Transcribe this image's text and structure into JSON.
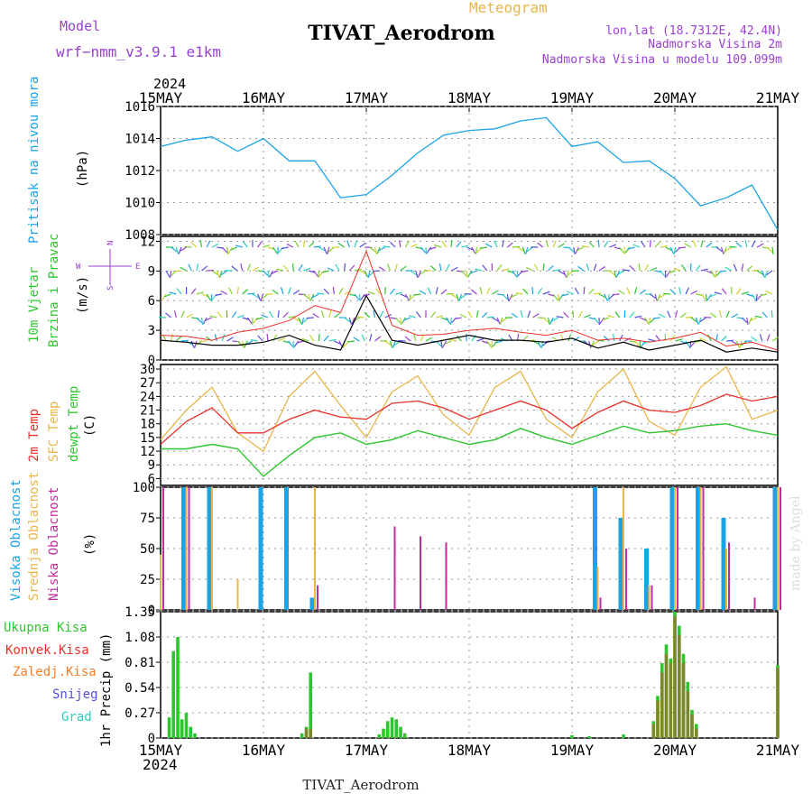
{
  "header": {
    "model_label": "Model",
    "model_name": "wrf−nmm_v3.9.1 e1km",
    "meteogram_label": "Meteogram",
    "station_title": "TIVAT_Aerodrom",
    "coords": "lon,lat (18.7312E, 42.4N)",
    "elevation": "Nadmorska Visina 2m",
    "model_elevation": "Nadmorska Visina u modelu 109.099m",
    "year_top": "2024",
    "year_bottom": "2024",
    "footer_title": "TIVAT_Aerodrom",
    "watermark": "made by Angel"
  },
  "time_labels": [
    "15MAY",
    "16MAY",
    "17MAY",
    "18MAY",
    "19MAY",
    "20MAY",
    "21MAY"
  ],
  "colors": {
    "pressure": "#1ba3e6",
    "wind_speed": "#000000",
    "gust": "#e8312a",
    "temp_2m": "#e8312a",
    "temp_sfc": "#e8b64a",
    "dewpoint": "#2ec52e",
    "cloud_high": "#1ba3e6",
    "cloud_mid": "#e8b64a",
    "cloud_low": "#c12c9c",
    "precip_total": "#2ec52e",
    "precip_conv": "#e8312a",
    "precip_frozen": "#f07f2a",
    "snow": "#5050e0",
    "hail": "#2ccfbf",
    "label_purple": "#9a3fd1"
  },
  "panels": {
    "pressure": {
      "ylabel": "Pritisak na nivou mora",
      "unit": "(hPa)",
      "ticks": [
        "1016",
        "1014",
        "1012",
        "1010",
        "1008"
      ]
    },
    "wind": {
      "ylabel_1": "10m Vjetar",
      "ylabel_2": "Brzina i Pravac",
      "unit": "(m/s)",
      "ticks": [
        "12",
        "9",
        "6",
        "3",
        "0"
      ],
      "compass": [
        "N",
        "W",
        "E",
        "S"
      ]
    },
    "temp": {
      "ylabel_1": "2m Temp",
      "ylabel_2": "SFC Temp",
      "ylabel_3": "dewpt Temp",
      "unit": "(C)",
      "ticks": [
        "30",
        "27",
        "24",
        "21",
        "18",
        "15",
        "12",
        "9",
        "6"
      ]
    },
    "cloud": {
      "ylabel_1": "Visoka Oblacnost",
      "ylabel_2": "Srednja Oblacnost",
      "ylabel_3": "Niska Oblacnost",
      "unit": "(%)",
      "ticks": [
        "100",
        "75",
        "50",
        "25",
        "0"
      ]
    },
    "precip": {
      "legend": [
        "Ukupna Kisa",
        "Konvek.Kisa",
        "Zaledj.Kisa",
        "Snijeg",
        "Grad"
      ],
      "ylabel": "1hr Precip (mm)",
      "ticks": [
        "1.35",
        "1.08",
        "0.81",
        "0.54",
        "0.27",
        "0"
      ]
    }
  },
  "chart_data": [
    {
      "type": "line",
      "title": "Pritisak na nivou mora",
      "ylabel": "(hPa)",
      "ylim": [
        1008,
        1016
      ],
      "x": [
        "15MAY",
        "15MAY 06",
        "15MAY 12",
        "15MAY 18",
        "16MAY",
        "16MAY 06",
        "16MAY 12",
        "16MAY 18",
        "17MAY",
        "17MAY 06",
        "17MAY 12",
        "17MAY 18",
        "18MAY",
        "18MAY 06",
        "18MAY 12",
        "18MAY 18",
        "19MAY",
        "19MAY 06",
        "19MAY 12",
        "19MAY 18",
        "20MAY",
        "20MAY 06",
        "20MAY 12",
        "20MAY 18",
        "21MAY"
      ],
      "series": [
        {
          "name": "Pritisak na nivou mora",
          "values": [
            1013.5,
            1013.9,
            1014.1,
            1013.2,
            1014.0,
            1012.6,
            1012.6,
            1010.3,
            1010.5,
            1011.7,
            1013.1,
            1014.2,
            1014.5,
            1014.6,
            1015.1,
            1015.3,
            1013.5,
            1013.8,
            1012.5,
            1012.6,
            1011.5,
            1009.8,
            1010.3,
            1011.1,
            1008.3
          ]
        }
      ]
    },
    {
      "type": "line",
      "title": "10m Vjetar Brzina i Pravac",
      "ylabel": "(m/s)",
      "ylim": [
        0,
        12.5
      ],
      "x": [
        "15MAY",
        "15MAY 06",
        "15MAY 12",
        "15MAY 18",
        "16MAY",
        "16MAY 06",
        "16MAY 12",
        "16MAY 18",
        "17MAY",
        "17MAY 06",
        "17MAY 12",
        "17MAY 18",
        "18MAY",
        "18MAY 06",
        "18MAY 12",
        "18MAY 18",
        "19MAY",
        "19MAY 06",
        "19MAY 12",
        "19MAY 18",
        "20MAY",
        "20MAY 06",
        "20MAY 12",
        "20MAY 18",
        "21MAY"
      ],
      "series": [
        {
          "name": "speed",
          "values": [
            2.0,
            1.8,
            1.5,
            1.5,
            1.8,
            2.5,
            1.5,
            1.0,
            6.5,
            2.0,
            1.5,
            2.0,
            2.5,
            2.0,
            2.0,
            1.8,
            2.2,
            1.2,
            1.8,
            1.0,
            1.5,
            2.0,
            0.8,
            1.2,
            0.8
          ]
        },
        {
          "name": "gust",
          "values": [
            2.5,
            2.4,
            2.0,
            2.8,
            3.2,
            4.0,
            5.5,
            4.8,
            11.0,
            3.5,
            2.5,
            2.6,
            3.0,
            3.2,
            2.8,
            2.5,
            3.0,
            2.0,
            2.2,
            1.8,
            2.2,
            2.8,
            1.4,
            1.8,
            1.0
          ]
        }
      ]
    },
    {
      "type": "line",
      "title": "2m Temp / SFC Temp / dewpt Temp",
      "ylabel": "(C)",
      "ylim": [
        4.5,
        31
      ],
      "x": [
        "15MAY",
        "15MAY 06",
        "15MAY 12",
        "15MAY 18",
        "16MAY",
        "16MAY 06",
        "16MAY 12",
        "16MAY 18",
        "17MAY",
        "17MAY 06",
        "17MAY 12",
        "17MAY 18",
        "18MAY",
        "18MAY 06",
        "18MAY 12",
        "18MAY 18",
        "19MAY",
        "19MAY 06",
        "19MAY 12",
        "19MAY 18",
        "20MAY",
        "20MAY 06",
        "20MAY 12",
        "20MAY 18",
        "21MAY"
      ],
      "series": [
        {
          "name": "2m Temp",
          "values": [
            13.5,
            18.5,
            21.5,
            16.0,
            16.0,
            19.0,
            21.0,
            19.5,
            19.0,
            22.5,
            23.0,
            21.5,
            19.0,
            21.0,
            23.0,
            21.0,
            17.0,
            20.5,
            23.0,
            21.0,
            20.5,
            22.0,
            24.5,
            23.0,
            24.0
          ]
        },
        {
          "name": "SFC Temp",
          "values": [
            14.5,
            21.0,
            26.0,
            16.0,
            12.0,
            24.0,
            29.5,
            22.0,
            15.0,
            25.0,
            28.5,
            20.0,
            15.5,
            26.0,
            29.5,
            19.0,
            15.0,
            25.0,
            30.0,
            18.5,
            15.5,
            26.0,
            30.5,
            19.0,
            21.0
          ]
        },
        {
          "name": "dewpt Temp",
          "values": [
            12.5,
            12.5,
            13.5,
            12.5,
            6.5,
            11.0,
            15.0,
            16.0,
            13.5,
            14.5,
            16.5,
            15.0,
            13.5,
            14.5,
            17.0,
            15.0,
            13.5,
            15.5,
            17.5,
            16.0,
            16.5,
            17.5,
            18.0,
            16.5,
            15.5
          ]
        }
      ]
    },
    {
      "type": "bar",
      "title": "Visoka / Srednja / Niska Oblacnost",
      "ylabel": "(%)",
      "ylim": [
        0,
        100
      ],
      "x": [
        "15MAY",
        "15MAY 06",
        "15MAY 12",
        "15MAY 18",
        "16MAY",
        "16MAY 06",
        "16MAY 12",
        "16MAY 18",
        "17MAY",
        "17MAY 06",
        "17MAY 12",
        "17MAY 18",
        "18MAY",
        "18MAY 06",
        "18MAY 12",
        "18MAY 18",
        "19MAY",
        "19MAY 06",
        "19MAY 12",
        "19MAY 18",
        "20MAY",
        "20MAY 06",
        "20MAY 12",
        "20MAY 18",
        "21MAY"
      ],
      "series": [
        {
          "name": "Visoka Oblacnost",
          "values": [
            0,
            100,
            100,
            0,
            100,
            100,
            10,
            0,
            0,
            0,
            0,
            0,
            0,
            0,
            0,
            0,
            0,
            100,
            75,
            50,
            100,
            100,
            75,
            0,
            100
          ]
        },
        {
          "name": "Srednja Oblacnost",
          "values": [
            45,
            100,
            100,
            25,
            0,
            0,
            100,
            0,
            0,
            0,
            0,
            0,
            0,
            0,
            0,
            0,
            0,
            35,
            100,
            20,
            100,
            100,
            50,
            0,
            100
          ]
        },
        {
          "name": "Niska Oblacnost",
          "values": [
            100,
            100,
            0,
            0,
            0,
            0,
            20,
            0,
            0,
            68,
            60,
            55,
            0,
            0,
            0,
            0,
            0,
            10,
            50,
            20,
            100,
            100,
            55,
            10,
            100
          ]
        }
      ]
    },
    {
      "type": "bar",
      "title": "1hr Precip",
      "ylabel": "1hr Precip (mm)",
      "ylim": [
        0,
        1.35
      ],
      "x": [
        "15MAY 02",
        "15MAY 03",
        "15MAY 04",
        "15MAY 05",
        "15MAY 06",
        "15MAY 07",
        "15MAY 08",
        "16MAY 09",
        "16MAY 10",
        "16MAY 11",
        "17MAY 03",
        "17MAY 04",
        "17MAY 05",
        "17MAY 06",
        "17MAY 07",
        "17MAY 08",
        "17MAY 09",
        "19MAY 00",
        "19MAY 04",
        "19MAY 12",
        "19MAY 19",
        "19MAY 20",
        "19MAY 21",
        "19MAY 22",
        "19MAY 23",
        "20MAY 00",
        "20MAY 01",
        "20MAY 02",
        "20MAY 03",
        "20MAY 04",
        "20MAY 05",
        "21MAY 00"
      ],
      "series": [
        {
          "name": "Ukupna Kisa",
          "values": [
            0.22,
            0.93,
            1.08,
            0.2,
            0.27,
            0.12,
            0.05,
            0.05,
            0.12,
            0.7,
            0.04,
            0.1,
            0.18,
            0.22,
            0.2,
            0.12,
            0.05,
            0.03,
            0.02,
            0.04,
            0.18,
            0.45,
            0.8,
            1.0,
            0.85,
            1.35,
            1.2,
            0.9,
            0.6,
            0.3,
            0.15,
            0.78
          ]
        },
        {
          "name": "Konvek.Kisa",
          "values": [
            0,
            0,
            0,
            0,
            0,
            0,
            0,
            0,
            0.1,
            0.1,
            0,
            0,
            0,
            0,
            0,
            0,
            0,
            0,
            0,
            0,
            0.15,
            0.4,
            0.7,
            0.9,
            0.8,
            1.3,
            1.1,
            0.8,
            0.5,
            0.25,
            0.1,
            0.75
          ]
        }
      ]
    }
  ]
}
